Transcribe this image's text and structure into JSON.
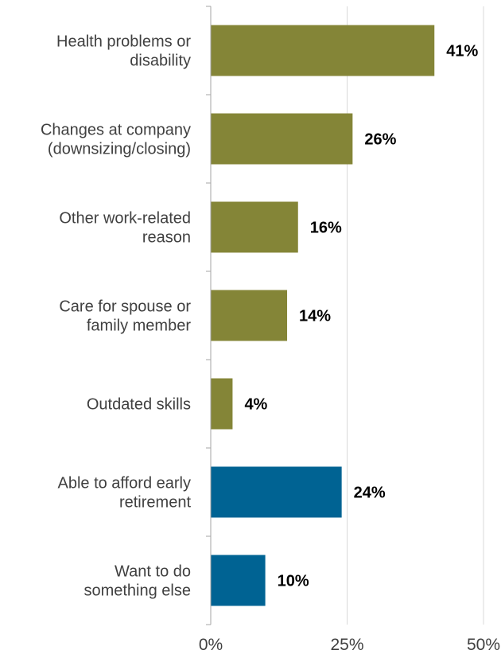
{
  "chart_data": {
    "type": "bar",
    "orientation": "horizontal",
    "categories": [
      [
        "Health problems or",
        "disability"
      ],
      [
        "Changes at company",
        "(downsizing/closing)"
      ],
      [
        "Other work-related",
        "reason"
      ],
      [
        "Care for spouse or",
        "family member"
      ],
      [
        "Outdated skills"
      ],
      [
        "Able to afford early",
        "retirement"
      ],
      [
        "Want to do",
        "something else"
      ]
    ],
    "values": [
      41,
      26,
      16,
      14,
      4,
      24,
      10
    ],
    "data_labels": [
      "41%",
      "26%",
      "16%",
      "14%",
      "4%",
      "24%",
      "10%"
    ],
    "bar_colors": [
      "#848537",
      "#848537",
      "#848537",
      "#848537",
      "#848537",
      "#006393",
      "#006393"
    ],
    "xlim": [
      0,
      50
    ],
    "x_ticks": [
      0,
      25,
      50
    ],
    "x_tick_labels": [
      "0%",
      "25%",
      "50%"
    ],
    "grid": "vertical gridlines",
    "colors": {
      "axis": "#a6a6a6",
      "gridline": "#d9d9d9",
      "text": "#404040",
      "value_text": "#000000"
    }
  }
}
